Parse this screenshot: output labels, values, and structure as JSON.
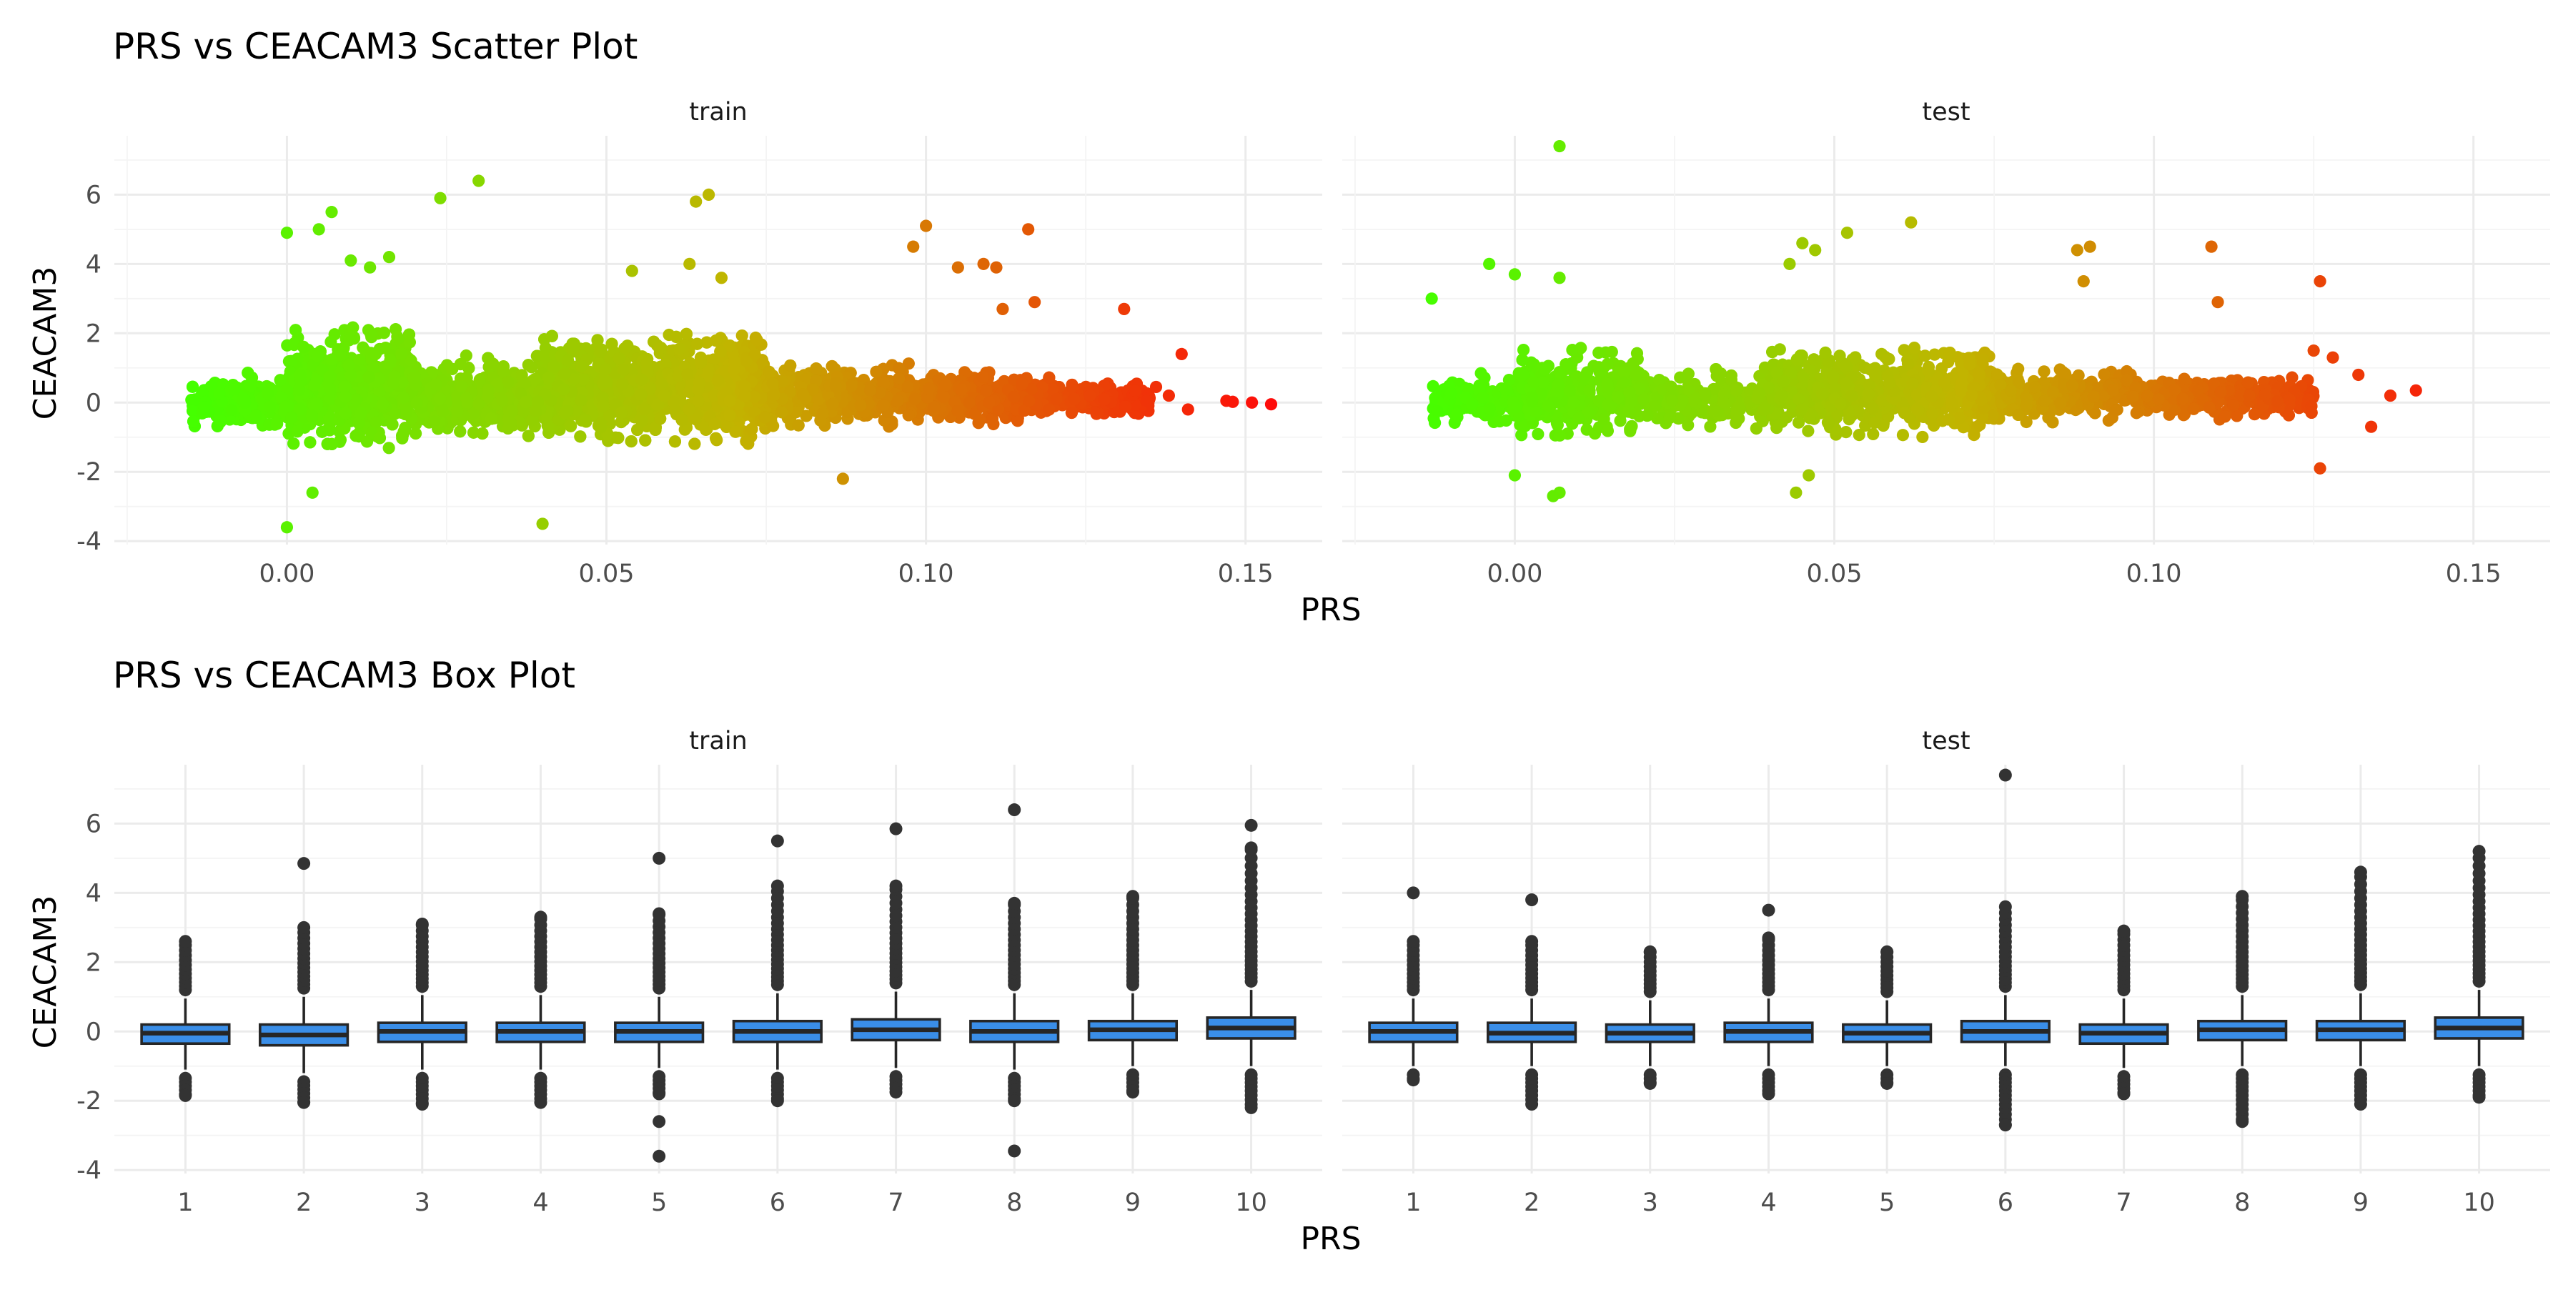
{
  "colors": {
    "low": "#44ff00",
    "mid": "#c2b400",
    "high": "#ff0a0a",
    "box_fill": "#3a8ee8",
    "box_line": "#262626",
    "outlier": "#333333"
  },
  "chart_data": [
    {
      "type": "scatter",
      "title": "PRS vs CEACAM3 Scatter Plot",
      "xlabel": "PRS",
      "ylabel": "CEACAM3",
      "xlim": [
        -0.027,
        0.162
      ],
      "ylim": [
        -4.1,
        7.7
      ],
      "xticks": [
        0.0,
        0.05,
        0.1,
        0.15
      ],
      "xtick_labels": [
        "0.00",
        "0.05",
        "0.10",
        "0.15"
      ],
      "yticks": [
        -4,
        -2,
        0,
        2,
        4,
        6
      ],
      "ytick_labels": [
        "-4",
        "-2",
        "0",
        "2",
        "4",
        "6"
      ],
      "color_scale": {
        "variable": "PRS",
        "gradient": "green-yellow-orange-red",
        "range": [
          -0.015,
          0.155
        ]
      },
      "grid": true,
      "panels": [
        {
          "name": "train",
          "dense_bands": [
            {
              "x_from": -0.015,
              "x_to": 0.0,
              "y_lo": -0.7,
              "y_hi": 0.7
            },
            {
              "x_from": 0.0,
              "x_to": 0.02,
              "y_lo": -1.4,
              "y_hi": 2.2
            },
            {
              "x_from": 0.02,
              "x_to": 0.04,
              "y_lo": -0.9,
              "y_hi": 1.2
            },
            {
              "x_from": 0.04,
              "x_to": 0.075,
              "y_lo": -1.2,
              "y_hi": 2.0
            },
            {
              "x_from": 0.075,
              "x_to": 0.1,
              "y_lo": -0.7,
              "y_hi": 1.1
            },
            {
              "x_from": 0.1,
              "x_to": 0.12,
              "y_lo": -0.6,
              "y_hi": 0.9
            },
            {
              "x_from": 0.12,
              "x_to": 0.135,
              "y_lo": -0.4,
              "y_hi": 0.6
            }
          ],
          "outliers": [
            [
              0.0,
              -3.6
            ],
            [
              0.0,
              4.9
            ],
            [
              0.004,
              -2.6
            ],
            [
              0.005,
              5.0
            ],
            [
              0.007,
              5.5
            ],
            [
              0.01,
              4.1
            ],
            [
              0.013,
              3.9
            ],
            [
              0.016,
              4.2
            ],
            [
              0.024,
              5.9
            ],
            [
              0.03,
              6.4
            ],
            [
              0.04,
              -3.5
            ],
            [
              0.054,
              3.8
            ],
            [
              0.063,
              4.0
            ],
            [
              0.064,
              5.8
            ],
            [
              0.066,
              6.0
            ],
            [
              0.068,
              3.6
            ],
            [
              0.087,
              -2.2
            ],
            [
              0.098,
              4.5
            ],
            [
              0.1,
              5.1
            ],
            [
              0.105,
              3.9
            ],
            [
              0.109,
              4.0
            ],
            [
              0.111,
              3.9
            ],
            [
              0.116,
              5.0
            ],
            [
              0.112,
              2.7
            ],
            [
              0.117,
              2.9
            ],
            [
              0.131,
              2.7
            ],
            [
              0.14,
              1.4
            ],
            [
              0.141,
              -0.2
            ],
            [
              0.147,
              0.05
            ],
            [
              0.148,
              0.02
            ],
            [
              0.151,
              0.0
            ],
            [
              0.154,
              -0.05
            ],
            [
              0.136,
              0.45
            ],
            [
              0.138,
              0.2
            ]
          ]
        },
        {
          "name": "test",
          "dense_bands": [
            {
              "x_from": -0.013,
              "x_to": 0.0,
              "y_lo": -0.6,
              "y_hi": 0.7
            },
            {
              "x_from": 0.0,
              "x_to": 0.02,
              "y_lo": -1.1,
              "y_hi": 1.6
            },
            {
              "x_from": 0.02,
              "x_to": 0.04,
              "y_lo": -0.7,
              "y_hi": 0.9
            },
            {
              "x_from": 0.04,
              "x_to": 0.075,
              "y_lo": -1.0,
              "y_hi": 1.6
            },
            {
              "x_from": 0.075,
              "x_to": 0.1,
              "y_lo": -0.6,
              "y_hi": 1.0
            },
            {
              "x_from": 0.1,
              "x_to": 0.125,
              "y_lo": -0.5,
              "y_hi": 0.8
            }
          ],
          "outliers": [
            [
              0.007,
              7.4
            ],
            [
              -0.013,
              3.0
            ],
            [
              -0.004,
              4.0
            ],
            [
              0.0,
              3.7
            ],
            [
              0.007,
              3.6
            ],
            [
              0.0,
              -2.1
            ],
            [
              0.007,
              -2.6
            ],
            [
              0.006,
              -2.7
            ],
            [
              0.043,
              4.0
            ],
            [
              0.045,
              4.6
            ],
            [
              0.047,
              4.4
            ],
            [
              0.052,
              4.9
            ],
            [
              0.062,
              5.2
            ],
            [
              0.044,
              -2.6
            ],
            [
              0.046,
              -2.1
            ],
            [
              0.088,
              4.4
            ],
            [
              0.09,
              4.5
            ],
            [
              0.089,
              3.5
            ],
            [
              0.109,
              4.5
            ],
            [
              0.11,
              2.9
            ],
            [
              0.126,
              3.5
            ],
            [
              0.126,
              -1.9
            ],
            [
              0.125,
              1.5
            ],
            [
              0.132,
              0.8
            ],
            [
              0.134,
              -0.7
            ],
            [
              0.137,
              0.2
            ],
            [
              0.141,
              0.35
            ],
            [
              0.128,
              1.3
            ]
          ]
        }
      ]
    },
    {
      "type": "box",
      "title": "PRS vs CEACAM3 Box Plot",
      "xlabel": "PRS",
      "ylabel": "CEACAM3",
      "categories": [
        "1",
        "2",
        "3",
        "4",
        "5",
        "6",
        "7",
        "8",
        "9",
        "10"
      ],
      "ylim": [
        -4.1,
        7.7
      ],
      "yticks": [
        -4,
        -2,
        0,
        2,
        4,
        6
      ],
      "ytick_labels": [
        "-4",
        "-2",
        "0",
        "2",
        "4",
        "6"
      ],
      "grid": true,
      "panels": [
        {
          "name": "train",
          "boxes": [
            {
              "q1": -0.35,
              "median": -0.05,
              "q3": 0.2,
              "wlo": -1.1,
              "whi": 0.95,
              "out_lo": -1.85,
              "out_hi": 2.6,
              "extra": []
            },
            {
              "q1": -0.4,
              "median": -0.1,
              "q3": 0.2,
              "wlo": -1.2,
              "whi": 1.0,
              "out_lo": -2.05,
              "out_hi": 3.0,
              "extra": [
                4.85
              ]
            },
            {
              "q1": -0.3,
              "median": 0.0,
              "q3": 0.25,
              "wlo": -1.1,
              "whi": 1.05,
              "out_lo": -2.1,
              "out_hi": 3.1,
              "extra": []
            },
            {
              "q1": -0.3,
              "median": 0.0,
              "q3": 0.25,
              "wlo": -1.1,
              "whi": 1.05,
              "out_lo": -2.05,
              "out_hi": 3.3,
              "extra": []
            },
            {
              "q1": -0.3,
              "median": 0.0,
              "q3": 0.25,
              "wlo": -1.05,
              "whi": 1.0,
              "out_lo": -1.8,
              "out_hi": 3.4,
              "extra": [
                -2.6,
                -3.6,
                5.0
              ]
            },
            {
              "q1": -0.3,
              "median": 0.0,
              "q3": 0.3,
              "wlo": -1.1,
              "whi": 1.1,
              "out_lo": -2.0,
              "out_hi": 4.2,
              "extra": [
                5.5
              ]
            },
            {
              "q1": -0.25,
              "median": 0.05,
              "q3": 0.35,
              "wlo": -1.05,
              "whi": 1.15,
              "out_lo": -1.75,
              "out_hi": 4.2,
              "extra": [
                5.85
              ]
            },
            {
              "q1": -0.3,
              "median": 0.0,
              "q3": 0.3,
              "wlo": -1.1,
              "whi": 1.1,
              "out_lo": -2.0,
              "out_hi": 3.7,
              "extra": [
                -3.45,
                6.4
              ]
            },
            {
              "q1": -0.25,
              "median": 0.05,
              "q3": 0.3,
              "wlo": -1.0,
              "whi": 1.1,
              "out_lo": -1.75,
              "out_hi": 3.9,
              "extra": []
            },
            {
              "q1": -0.2,
              "median": 0.1,
              "q3": 0.4,
              "wlo": -1.0,
              "whi": 1.2,
              "out_lo": -2.2,
              "out_hi": 5.3,
              "extra": [
                5.95
              ]
            }
          ]
        },
        {
          "name": "test",
          "boxes": [
            {
              "q1": -0.3,
              "median": 0.0,
              "q3": 0.25,
              "wlo": -1.0,
              "whi": 0.95,
              "out_lo": -1.4,
              "out_hi": 2.6,
              "extra": [
                4.0
              ]
            },
            {
              "q1": -0.3,
              "median": -0.05,
              "q3": 0.25,
              "wlo": -1.0,
              "whi": 0.95,
              "out_lo": -2.1,
              "out_hi": 2.6,
              "extra": [
                3.8
              ]
            },
            {
              "q1": -0.3,
              "median": -0.05,
              "q3": 0.2,
              "wlo": -1.0,
              "whi": 0.9,
              "out_lo": -1.5,
              "out_hi": 2.3,
              "extra": []
            },
            {
              "q1": -0.3,
              "median": 0.0,
              "q3": 0.25,
              "wlo": -1.0,
              "whi": 0.95,
              "out_lo": -1.8,
              "out_hi": 2.7,
              "extra": [
                3.5
              ]
            },
            {
              "q1": -0.3,
              "median": -0.05,
              "q3": 0.2,
              "wlo": -1.0,
              "whi": 0.9,
              "out_lo": -1.5,
              "out_hi": 2.3,
              "extra": []
            },
            {
              "q1": -0.3,
              "median": 0.0,
              "q3": 0.3,
              "wlo": -1.0,
              "whi": 1.05,
              "out_lo": -2.7,
              "out_hi": 3.6,
              "extra": [
                7.4
              ]
            },
            {
              "q1": -0.35,
              "median": -0.05,
              "q3": 0.2,
              "wlo": -1.05,
              "whi": 0.95,
              "out_lo": -1.8,
              "out_hi": 2.9,
              "extra": []
            },
            {
              "q1": -0.25,
              "median": 0.05,
              "q3": 0.3,
              "wlo": -1.0,
              "whi": 1.05,
              "out_lo": -2.6,
              "out_hi": 3.9,
              "extra": []
            },
            {
              "q1": -0.25,
              "median": 0.05,
              "q3": 0.3,
              "wlo": -1.0,
              "whi": 1.1,
              "out_lo": -2.1,
              "out_hi": 4.6,
              "extra": []
            },
            {
              "q1": -0.2,
              "median": 0.1,
              "q3": 0.4,
              "wlo": -1.0,
              "whi": 1.2,
              "out_lo": -1.9,
              "out_hi": 5.2,
              "extra": []
            }
          ]
        }
      ]
    }
  ]
}
